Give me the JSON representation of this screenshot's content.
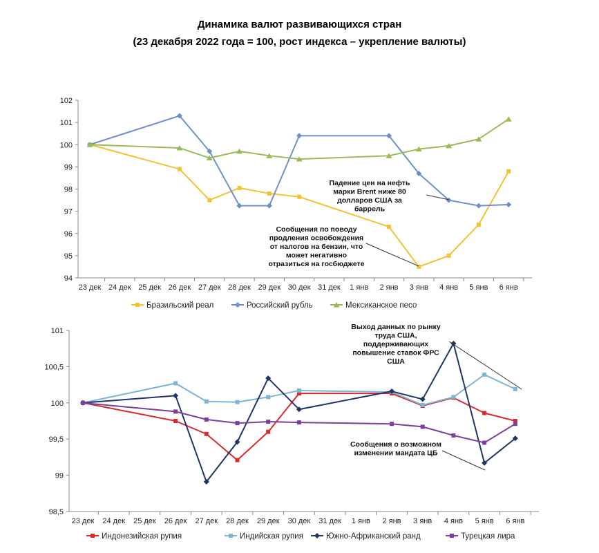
{
  "header": {
    "title": "Динамика валют развивающихся стран",
    "subtitle": "(23 декабря 2022 года = 100, рост индекса – укрепление валюты)"
  },
  "chart_data": [
    {
      "type": "line",
      "categories": [
        "23 дек",
        "24 дек",
        "25 дек",
        "26 дек",
        "27 дек",
        "28 дек",
        "29 дек",
        "30 дек",
        "31 дек",
        "1 янв",
        "2 янв",
        "3 янв",
        "4 янв",
        "5 янв",
        "6 янв"
      ],
      "ylim": [
        94,
        102
      ],
      "yticks": [
        "94",
        "95",
        "96",
        "97",
        "98",
        "99",
        "100",
        "101",
        "102"
      ],
      "grid": false,
      "legend": "bottom",
      "series": [
        {
          "name": "Бразильский реал",
          "color": "#F5C233",
          "marker": "square",
          "points": [
            [
              0,
              100
            ],
            [
              3,
              98.9
            ],
            [
              4,
              97.5
            ],
            [
              5,
              98.05
            ],
            [
              6,
              97.8
            ],
            [
              7,
              97.65
            ],
            [
              10,
              96.3
            ],
            [
              11,
              94.5
            ],
            [
              12,
              95.0
            ],
            [
              13,
              96.4
            ],
            [
              14,
              98.8
            ]
          ]
        },
        {
          "name": "Российский рубль",
          "color": "#6E8FCC",
          "marker": "diamond",
          "points": [
            [
              0,
              100
            ],
            [
              3,
              101.3
            ],
            [
              4,
              99.7
            ],
            [
              5,
              97.25
            ],
            [
              6,
              97.25
            ],
            [
              7,
              100.4
            ],
            [
              10,
              100.4
            ],
            [
              11,
              98.7
            ],
            [
              12,
              97.5
            ],
            [
              13,
              97.25
            ],
            [
              14,
              97.3
            ]
          ]
        },
        {
          "name": "Мексиканское песо",
          "color": "#9BBB59",
          "marker": "triangle",
          "points": [
            [
              0,
              100
            ],
            [
              3,
              99.85
            ],
            [
              4,
              99.4
            ],
            [
              5,
              99.7
            ],
            [
              6,
              99.5
            ],
            [
              7,
              99.35
            ],
            [
              10,
              99.5
            ],
            [
              11,
              99.8
            ],
            [
              12,
              99.95
            ],
            [
              13,
              100.25
            ],
            [
              14,
              101.15
            ]
          ]
        }
      ],
      "annotations": [
        {
          "lines": [
            "Падение цен на нефть",
            "марки Brent ниже 80",
            "долларов США за",
            "баррель"
          ]
        },
        {
          "lines": [
            "Сообщения по поводу",
            "продления освобождения",
            "от налогов на бензин, что",
            "может негативно",
            "отразиться на госбюджете"
          ]
        }
      ]
    },
    {
      "type": "line",
      "categories": [
        "23 дек",
        "24 дек",
        "25 дек",
        "26 дек",
        "27 дек",
        "28 дек",
        "29 дек",
        "30 дек",
        "31 дек",
        "1 янв",
        "2 янв",
        "3 янв",
        "4 янв",
        "5 янв",
        "6 янв"
      ],
      "ylim": [
        98.5,
        101
      ],
      "yticks": [
        "98,5",
        "99",
        "99,5",
        "100",
        "100,5",
        "101"
      ],
      "grid": false,
      "legend": "bottom",
      "series": [
        {
          "name": "Индонезийская рупия",
          "color": "#D82B2B",
          "marker": "square",
          "points": [
            [
              0,
              100
            ],
            [
              3,
              99.75
            ],
            [
              4,
              99.57
            ],
            [
              5,
              99.21
            ],
            [
              6,
              99.6
            ],
            [
              7,
              100.13
            ],
            [
              10,
              100.13
            ],
            [
              11,
              99.96
            ],
            [
              12,
              100.07
            ],
            [
              13,
              99.86
            ],
            [
              14,
              99.75
            ]
          ]
        },
        {
          "name": "Индийская рупия",
          "color": "#7FB4D4",
          "marker": "square",
          "points": [
            [
              0,
              100
            ],
            [
              3,
              100.27
            ],
            [
              4,
              100.02
            ],
            [
              5,
              100.01
            ],
            [
              6,
              100.08
            ],
            [
              7,
              100.17
            ],
            [
              10,
              100.15
            ],
            [
              11,
              99.97
            ],
            [
              12,
              100.08
            ],
            [
              13,
              100.39
            ],
            [
              14,
              100.19
            ]
          ]
        },
        {
          "name": "Южно-Африканский ранд",
          "color": "#1F3468",
          "marker": "diamond",
          "points": [
            [
              0,
              100
            ],
            [
              3,
              100.1
            ],
            [
              4,
              98.91
            ],
            [
              5,
              99.46
            ],
            [
              6,
              100.34
            ],
            [
              7,
              99.91
            ],
            [
              10,
              100.16
            ],
            [
              11,
              100.05
            ],
            [
              12,
              100.82
            ],
            [
              13,
              99.17
            ],
            [
              14,
              99.51
            ]
          ]
        },
        {
          "name": "Турецкая лира",
          "color": "#7B3FA0",
          "marker": "square",
          "points": [
            [
              0,
              100
            ],
            [
              3,
              99.88
            ],
            [
              4,
              99.77
            ],
            [
              5,
              99.72
            ],
            [
              6,
              99.74
            ],
            [
              7,
              99.73
            ],
            [
              10,
              99.71
            ],
            [
              11,
              99.67
            ],
            [
              12,
              99.55
            ],
            [
              13,
              99.45
            ],
            [
              14,
              99.71
            ]
          ]
        }
      ],
      "annotations": [
        {
          "lines": [
            "Выход данных по рынку",
            "труда США,",
            "поддерживающих",
            "повышение ставок ФРС",
            "США"
          ]
        },
        {
          "lines": [
            "Сообщения о возможном",
            "изменении мандата ЦБ"
          ]
        }
      ]
    }
  ]
}
